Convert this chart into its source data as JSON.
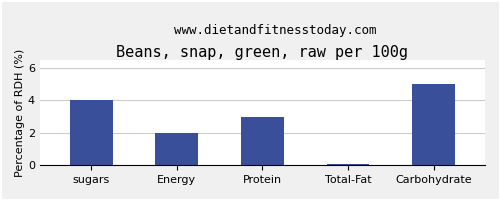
{
  "title": "Beans, snap, green, raw per 100g",
  "subtitle": "www.dietandfitnesstoday.com",
  "categories": [
    "sugars",
    "Energy",
    "Protein",
    "Total-Fat",
    "Carbohydrate"
  ],
  "values": [
    4.0,
    2.0,
    3.0,
    0.05,
    5.0
  ],
  "bar_color": "#3a4f9a",
  "ylabel": "Percentage of RDH (%)",
  "ylim": [
    0,
    6.5
  ],
  "yticks": [
    0,
    2,
    4,
    6
  ],
  "background_color": "#f0f0f0",
  "plot_bg_color": "#ffffff",
  "title_fontsize": 11,
  "subtitle_fontsize": 9,
  "ylabel_fontsize": 8,
  "tick_fontsize": 8,
  "grid_color": "#cccccc"
}
